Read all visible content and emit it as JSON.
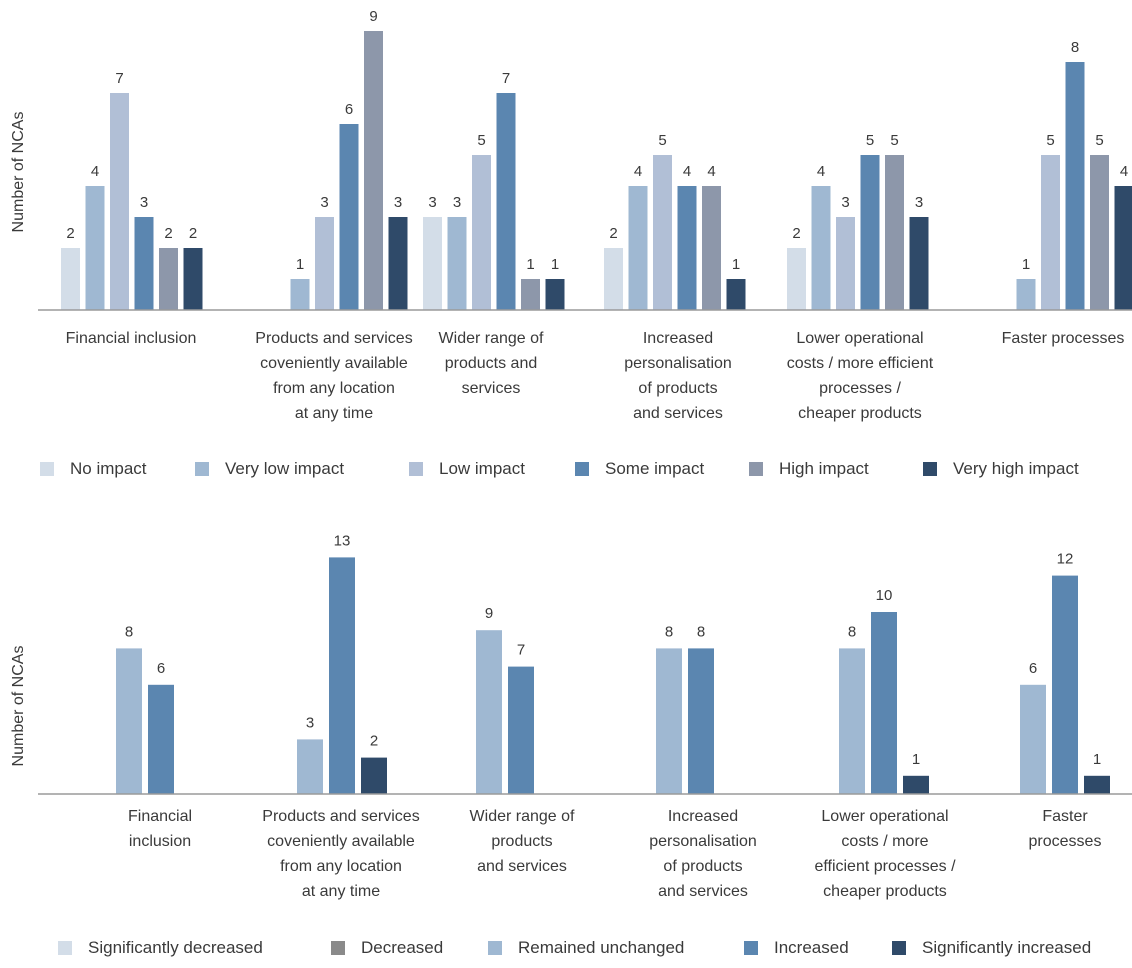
{
  "chart_data": [
    {
      "type": "bar",
      "ylabel": "Number of NCAs",
      "ylim": [
        0,
        9
      ],
      "grid": false,
      "legend_position": "bottom",
      "categories": [
        [
          "Financial inclusion"
        ],
        [
          "Products and services",
          "coveniently available",
          "from any location",
          "at any time"
        ],
        [
          "Wider range of",
          "products and",
          "services"
        ],
        [
          "Increased",
          "personalisation",
          "of products",
          "and services"
        ],
        [
          "Lower operational",
          "costs / more efficient",
          "processes /",
          "cheaper products"
        ],
        [
          "Faster processes"
        ]
      ],
      "series": [
        {
          "name": "No impact",
          "color": "#d3dde8",
          "values": [
            2,
            0,
            3,
            2,
            2,
            0
          ]
        },
        {
          "name": "Very low impact",
          "color": "#9fb8d2",
          "values": [
            4,
            1,
            3,
            4,
            4,
            1
          ]
        },
        {
          "name": "Low impact",
          "color": "#b1bfd6",
          "values": [
            7,
            3,
            5,
            5,
            3,
            5
          ]
        },
        {
          "name": "Some impact",
          "color": "#5b86b0",
          "values": [
            3,
            6,
            7,
            4,
            5,
            8
          ]
        },
        {
          "name": "High impact",
          "color": "#8d97aa",
          "values": [
            2,
            9,
            1,
            4,
            5,
            5
          ]
        },
        {
          "name": "Very high impact",
          "color": "#2f4a69",
          "values": [
            2,
            3,
            1,
            1,
            3,
            4
          ]
        }
      ]
    },
    {
      "type": "bar",
      "ylabel": "Number of NCAs",
      "ylim": [
        0,
        13
      ],
      "grid": false,
      "legend_position": "bottom",
      "categories": [
        [
          "Financial",
          "inclusion"
        ],
        [
          "Products and services",
          "coveniently available",
          "from any location",
          "at any time"
        ],
        [
          "Wider range of",
          "products",
          "and services"
        ],
        [
          "Increased",
          "personalisation",
          "of products",
          "and services"
        ],
        [
          "Lower operational",
          "costs / more",
          "efficient processes /",
          "cheaper products"
        ],
        [
          "Faster",
          "processes"
        ]
      ],
      "series": [
        {
          "name": "Significantly decreased",
          "color": "#d3dde8",
          "values": [
            0,
            0,
            0,
            0,
            0,
            0
          ]
        },
        {
          "name": "Decreased",
          "color": "#8a8a8a",
          "values": [
            0,
            0,
            0,
            0,
            0,
            0
          ]
        },
        {
          "name": "Remained unchanged",
          "color": "#9fb8d2",
          "values": [
            8,
            3,
            9,
            8,
            8,
            6
          ]
        },
        {
          "name": "Increased",
          "color": "#5b86b0",
          "values": [
            6,
            13,
            7,
            8,
            10,
            12
          ]
        },
        {
          "name": "Significantly increased",
          "color": "#2f4a69",
          "values": [
            0,
            2,
            0,
            0,
            1,
            1
          ]
        }
      ]
    }
  ]
}
